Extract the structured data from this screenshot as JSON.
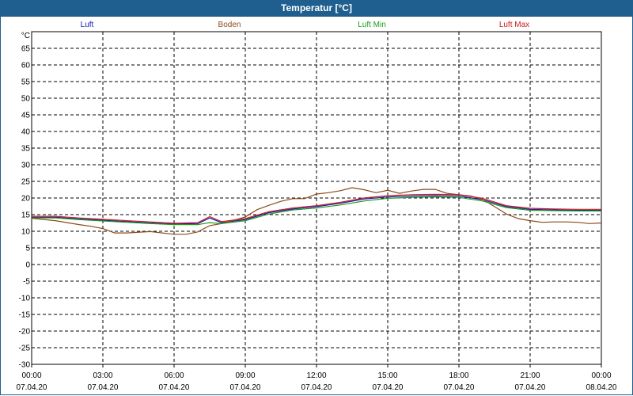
{
  "window": {
    "title": "Temperatur [°C]"
  },
  "chart_data": {
    "type": "line",
    "title": "Temperatur [°C]",
    "ylabel": "°C",
    "xlabel": "",
    "ylim": [
      -30,
      70
    ],
    "yticks": [
      65,
      60,
      55,
      50,
      45,
      40,
      35,
      30,
      25,
      20,
      15,
      10,
      5,
      0,
      -5,
      -10,
      -15,
      -20,
      -25,
      -30
    ],
    "xlim_hours": [
      0,
      24
    ],
    "xticks": [
      {
        "hour": 0,
        "time": "00:00",
        "date": "07.04.20"
      },
      {
        "hour": 3,
        "time": "03:00",
        "date": "07.04.20"
      },
      {
        "hour": 6,
        "time": "06:00",
        "date": "07.04.20"
      },
      {
        "hour": 9,
        "time": "09:00",
        "date": "07.04.20"
      },
      {
        "hour": 12,
        "time": "12:00",
        "date": "07.04.20"
      },
      {
        "hour": 15,
        "time": "15:00",
        "date": "07.04.20"
      },
      {
        "hour": 18,
        "time": "18:00",
        "date": "07.04.20"
      },
      {
        "hour": 21,
        "time": "21:00",
        "date": "07.04.20"
      },
      {
        "hour": 24,
        "time": "00:00",
        "date": "08.04.20"
      }
    ],
    "grid": true,
    "legend_position": "top",
    "series": [
      {
        "name": "Luft",
        "color": "#1a1ab4",
        "x": [
          0,
          1,
          2,
          3,
          4,
          5,
          6,
          7,
          7.5,
          8,
          9,
          10,
          11,
          12,
          13,
          14,
          15,
          16,
          17,
          18,
          19,
          20,
          21,
          22,
          23,
          24
        ],
        "y": [
          14.2,
          14.2,
          13.7,
          13.3,
          12.9,
          12.5,
          12.2,
          12.3,
          14.0,
          12.6,
          13.5,
          15.6,
          16.7,
          17.4,
          18.4,
          19.7,
          20.3,
          20.6,
          20.7,
          20.6,
          19.5,
          17.4,
          16.6,
          16.4,
          16.3,
          16.3
        ]
      },
      {
        "name": "Boden",
        "color": "#8b4a1a",
        "x": [
          0,
          1,
          2,
          2.5,
          3,
          3.5,
          4,
          5,
          6,
          6.5,
          7,
          7.5,
          8,
          9,
          9.5,
          10,
          10.5,
          11,
          11.5,
          12,
          12.5,
          13,
          13.5,
          14,
          14.5,
          15,
          15.5,
          16,
          16.5,
          17,
          17.5,
          18,
          18.5,
          19,
          19.5,
          20,
          20.5,
          21,
          21.5,
          22,
          22.5,
          23,
          23.5,
          24
        ],
        "y": [
          13.9,
          13.2,
          12.0,
          11.5,
          10.8,
          9.5,
          9.5,
          9.9,
          9.1,
          9.1,
          9.8,
          11.7,
          12.3,
          14.3,
          16.5,
          17.8,
          19.0,
          19.8,
          19.8,
          21.2,
          21.6,
          22.2,
          23.1,
          22.5,
          21.6,
          22.3,
          21.4,
          22.1,
          22.6,
          22.6,
          21.4,
          21.0,
          20.6,
          19.6,
          17.4,
          15.2,
          13.8,
          13.2,
          12.7,
          12.8,
          12.8,
          12.7,
          12.3,
          12.5
        ]
      },
      {
        "name": "Luft Min",
        "color": "#1a9e1a",
        "x": [
          0,
          1,
          2,
          3,
          4,
          5,
          6,
          7,
          7.5,
          8,
          9,
          10,
          11,
          12,
          13,
          14,
          15,
          16,
          17,
          18,
          19,
          20,
          21,
          22,
          23,
          24
        ],
        "y": [
          14.0,
          14.0,
          13.5,
          13.1,
          12.7,
          12.3,
          12.0,
          12.0,
          12.6,
          12.3,
          13.2,
          15.2,
          16.4,
          17.0,
          17.9,
          19.1,
          19.9,
          20.2,
          20.3,
          20.2,
          19.1,
          17.1,
          16.3,
          16.2,
          16.1,
          16.1
        ]
      },
      {
        "name": "Luft Max",
        "color": "#c81e1e",
        "x": [
          0,
          1,
          2,
          3,
          4,
          5,
          6,
          7,
          7.5,
          8,
          9,
          10,
          11,
          12,
          13,
          14,
          15,
          16,
          17,
          18,
          19,
          20,
          21,
          22,
          23,
          24
        ],
        "y": [
          14.5,
          14.5,
          14.0,
          13.6,
          13.2,
          12.8,
          12.4,
          12.6,
          14.4,
          12.9,
          13.8,
          15.9,
          17.0,
          17.7,
          18.7,
          20.0,
          20.7,
          21.0,
          21.1,
          21.0,
          19.9,
          17.7,
          16.9,
          16.7,
          16.6,
          16.6
        ]
      }
    ]
  }
}
